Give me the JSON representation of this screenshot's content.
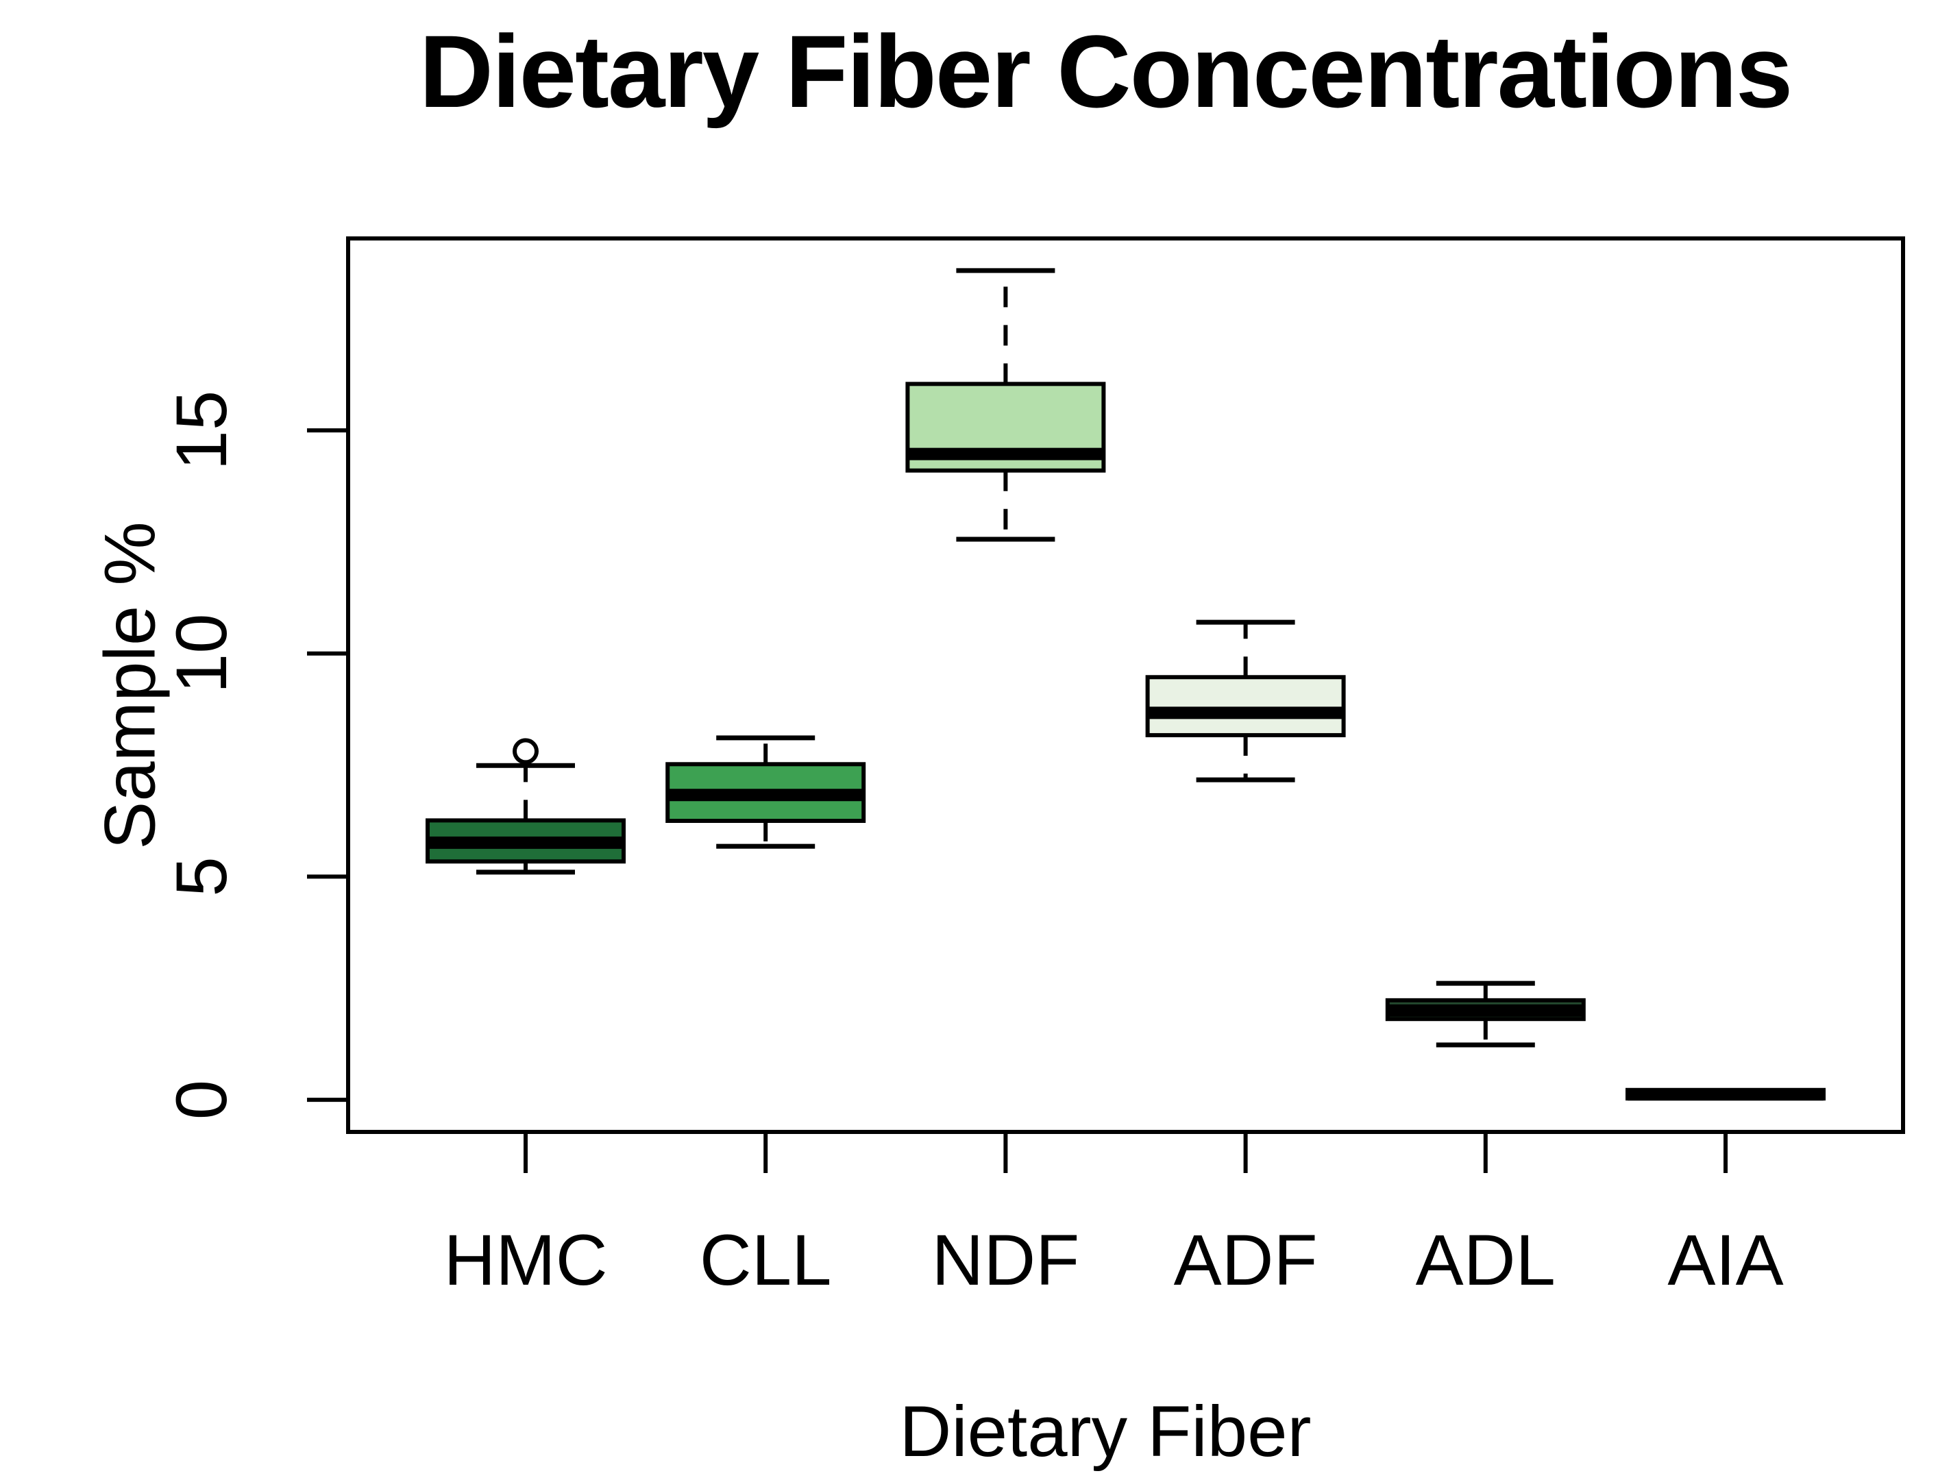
{
  "chart_data": {
    "type": "boxplot",
    "title": "Dietary Fiber Concentrations",
    "xlabel": "Dietary Fiber",
    "ylabel": "Sample %",
    "categories": [
      "HMC",
      "CLL",
      "NDF",
      "ADF",
      "ADL",
      "AIA"
    ],
    "y_ticks": [
      "0",
      "5",
      "10",
      "15"
    ],
    "y_tick_values": [
      0,
      5,
      10,
      15
    ],
    "ylim": [
      -0.72,
      19.3
    ],
    "grid": false,
    "frame": true,
    "legend": "none",
    "whisker_style": "dashed",
    "series": [
      {
        "name": "HMC",
        "low": 5.1,
        "q1": 5.34,
        "median": 5.76,
        "q3": 6.26,
        "high": 7.49,
        "outliers": [
          7.81
        ],
        "fill": "#1f6e38"
      },
      {
        "name": "CLL",
        "low": 5.68,
        "q1": 6.25,
        "median": 6.83,
        "q3": 7.52,
        "high": 8.11,
        "outliers": [],
        "fill": "#3da152"
      },
      {
        "name": "NDF",
        "low": 12.56,
        "q1": 14.1,
        "median": 14.47,
        "q3": 16.04,
        "high": 18.58,
        "outliers": [],
        "fill": "#b4dfab"
      },
      {
        "name": "ADF",
        "low": 7.17,
        "q1": 8.17,
        "median": 8.67,
        "q3": 9.47,
        "high": 10.7,
        "outliers": [],
        "fill": "#e9f2e4"
      },
      {
        "name": "ADL",
        "low": 1.23,
        "q1": 1.81,
        "median": 2.0,
        "q3": 2.23,
        "high": 2.61,
        "outliers": [],
        "fill": "#23482e"
      },
      {
        "name": "AIA",
        "low": 0.03,
        "q1": 0.03,
        "median": 0.12,
        "q3": 0.22,
        "high": 0.22,
        "outliers": [],
        "fill": "#000000"
      }
    ],
    "line_color": "#000000",
    "background": "#ffffff"
  }
}
